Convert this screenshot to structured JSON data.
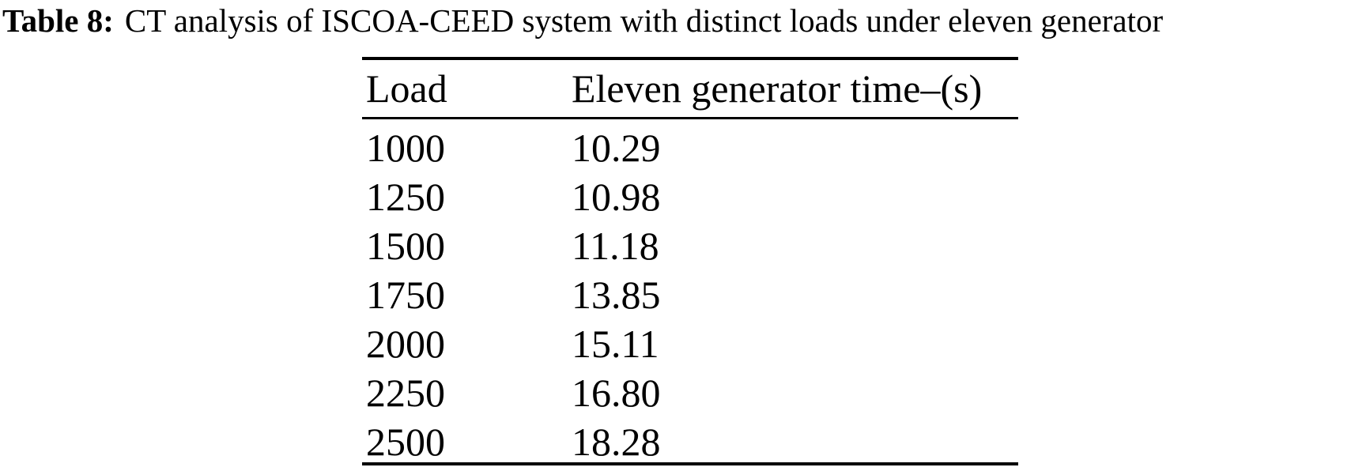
{
  "caption": {
    "label": "Table 8:",
    "text": "CT analysis of ISCOA-CEED system with distinct loads under eleven generator"
  },
  "table": {
    "columns": [
      "Load",
      "Eleven generator time–(s)"
    ],
    "rows": [
      [
        "1000",
        "10.29"
      ],
      [
        "1250",
        "10.98"
      ],
      [
        "1500",
        "11.18"
      ],
      [
        "1750",
        "13.85"
      ],
      [
        "2000",
        "15.11"
      ],
      [
        "2250",
        "16.80"
      ],
      [
        "2500",
        "18.28"
      ]
    ]
  },
  "chart_data": {
    "type": "table",
    "title": "Table 8: CT analysis of ISCOA-CEED system with distinct loads under eleven generator",
    "columns": [
      "Load",
      "Eleven generator time–(s)"
    ],
    "rows": [
      [
        1000,
        10.29
      ],
      [
        1250,
        10.98
      ],
      [
        1500,
        11.18
      ],
      [
        1750,
        13.85
      ],
      [
        2000,
        15.11
      ],
      [
        2250,
        16.8
      ],
      [
        2500,
        18.28
      ]
    ]
  },
  "colors": {
    "text": "#000000",
    "background": "#ffffff",
    "rule": "#000000"
  }
}
